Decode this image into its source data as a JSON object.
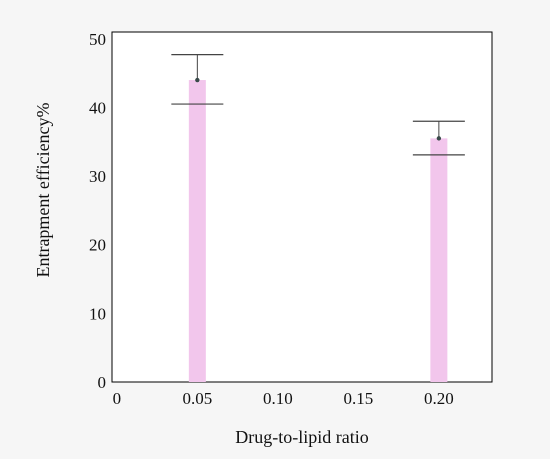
{
  "chart_data": {
    "type": "bar",
    "xlabel": "Drug-to-lipid ratio",
    "ylabel": "Entrapment efficiency%",
    "x_ticks": [
      "0",
      "0.05",
      "0.10",
      "0.15",
      "0.20"
    ],
    "x_tick_values": [
      0,
      0.05,
      0.1,
      0.15,
      0.2
    ],
    "y_ticks": [
      "0",
      "10",
      "20",
      "30",
      "40",
      "50"
    ],
    "y_tick_values": [
      0,
      10,
      20,
      30,
      40,
      50
    ],
    "xlim": [
      -0.003,
      0.233
    ],
    "ylim": [
      0,
      51
    ],
    "grid": false,
    "categories": [
      "0.05",
      "0.20"
    ],
    "x": [
      0.05,
      0.2
    ],
    "values": [
      44,
      35.5
    ],
    "error_upper": [
      47.7,
      38
    ],
    "error_lower": [
      40.5,
      33.1
    ],
    "colors": {
      "bar": "#f2c6ec",
      "error_bar": "#444444",
      "point": "#3a4a4a",
      "axis": "#000000",
      "plot_background": "#ffffff"
    }
  }
}
